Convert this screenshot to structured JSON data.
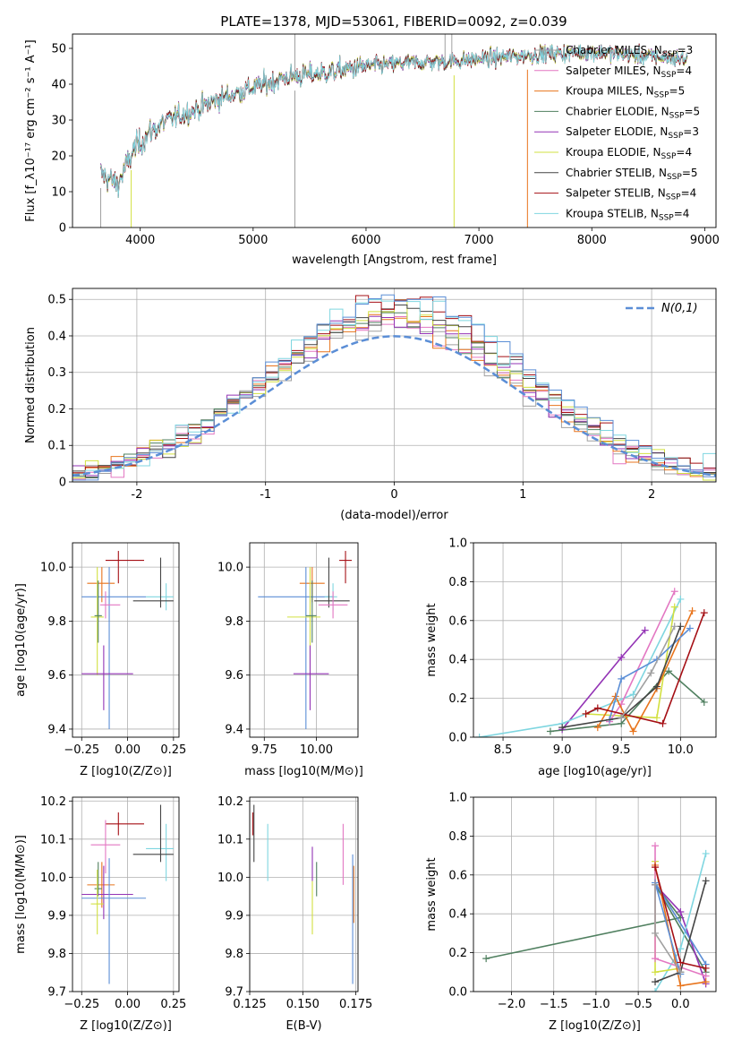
{
  "figure": {
    "title": "PLATE=1378, MJD=53061, FIBERID=0092, z=0.039"
  },
  "colors": {
    "Chabrier MILES": "#a0a0a0",
    "Salpeter MILES": "#e377c2",
    "Kroupa MILES": "#e8741c",
    "Chabrier ELODIE": "#4f7f5f",
    "Salpeter ELODIE": "#9333b5",
    "Kroupa ELODIE": "#d2e040",
    "Chabrier STELIB": "#444444",
    "Salpeter STELIB": "#a50f15",
    "Kroupa STELIB": "#7fd6e0",
    "normal_curve": "#5b8ed6",
    "blue_extra": "#5b8ed6"
  },
  "chart_data": [
    {
      "id": "spectrum",
      "type": "line",
      "title": "PLATE=1378, MJD=53061, FIBERID=0092, z=0.039",
      "xlabel": "wavelength [Angstrom, rest frame]",
      "ylabel": "Flux [f_λ10⁻¹⁷ erg cm⁻² s⁻¹ A⁻¹]",
      "xlim": [
        3400,
        9100
      ],
      "ylim": [
        0,
        54
      ],
      "xticks": [
        4000,
        5000,
        6000,
        7000,
        8000,
        9000
      ],
      "yticks": [
        0,
        10,
        20,
        30,
        40,
        50
      ],
      "grid": false,
      "legend": "right",
      "continuum_x": [
        3650,
        3800,
        3950,
        4100,
        4250,
        4500,
        4700,
        5000,
        5300,
        5600,
        6000,
        6400,
        6800,
        7200,
        7600,
        8000,
        8400,
        8850
      ],
      "continuum_y": [
        15,
        12,
        22,
        27,
        30,
        33,
        36,
        39,
        42,
        43,
        45,
        46,
        46.5,
        47.5,
        48.5,
        49,
        48,
        47
      ],
      "legend_entries": [
        {
          "name": "Chabrier MILES",
          "nssp": "3"
        },
        {
          "name": "Salpeter MILES",
          "nssp": "4"
        },
        {
          "name": "Kroupa MILES",
          "nssp": "5"
        },
        {
          "name": "Chabrier ELODIE",
          "nssp": "5"
        },
        {
          "name": "Salpeter ELODIE",
          "nssp": "3"
        },
        {
          "name": "Kroupa ELODIE",
          "nssp": "4"
        },
        {
          "name": "Chabrier STELIB",
          "nssp": "5"
        },
        {
          "name": "Salpeter STELIB",
          "nssp": "4"
        },
        {
          "name": "Kroupa STELIB",
          "nssp": "4"
        }
      ]
    },
    {
      "id": "residuals",
      "type": "histogram",
      "xlabel": "(data-model)/error",
      "ylabel": "Normed distribution",
      "xlim": [
        -2.5,
        2.5
      ],
      "ylim": [
        0,
        0.53
      ],
      "xticks": [
        -2,
        -1,
        0,
        1,
        2
      ],
      "yticks": [
        0.0,
        0.1,
        0.2,
        0.3,
        0.4,
        0.5
      ],
      "grid": true,
      "legend": "top-right",
      "legend_label": "N(0,1)",
      "bin_width": 0.1
    },
    {
      "id": "age_vs_Z",
      "type": "errorbar",
      "xlabel": "Z [log10(Z/Z⊙)]",
      "ylabel": "age  [log10(age/yr)]",
      "xlim": [
        -0.3,
        0.28
      ],
      "ylim": [
        9.37,
        10.09
      ],
      "xticks": [
        -0.25,
        0.0,
        0.25
      ],
      "xticklabels": [
        "−0.25",
        "0.00",
        "0.25"
      ],
      "yticks": [
        9.4,
        9.6,
        9.8,
        10.0
      ],
      "yticklabels": [
        "9.4",
        "9.6",
        "9.8",
        "10.0"
      ],
      "grid": true,
      "points": [
        {
          "s": "Salpeter STELIB",
          "x": -0.05,
          "y": 10.025,
          "xe": [
            -0.12,
            0.09
          ],
          "ye": [
            9.94,
            10.06
          ]
        },
        {
          "s": "Kroupa MILES",
          "x": -0.14,
          "y": 9.94,
          "xe": [
            -0.22,
            -0.07
          ],
          "ye": [
            9.87,
            10.0
          ]
        },
        {
          "s": "blue_extra",
          "x": -0.1,
          "y": 9.89,
          "xe": [
            -0.25,
            0.1
          ],
          "ye": [
            9.4,
            10.0
          ]
        },
        {
          "s": "Kroupa STELIB",
          "x": 0.21,
          "y": 9.89,
          "xe": [
            0.1,
            0.25
          ],
          "ye": [
            9.84,
            9.94
          ]
        },
        {
          "s": "Chabrier STELIB",
          "x": 0.18,
          "y": 9.875,
          "xe": [
            0.03,
            0.25
          ],
          "ye": [
            9.85,
            10.035
          ]
        },
        {
          "s": "Salpeter MILES",
          "x": -0.12,
          "y": 9.86,
          "xe": [
            -0.15,
            -0.04
          ],
          "ye": [
            9.81,
            9.91
          ]
        },
        {
          "s": "Kroupa ELODIE",
          "x": -0.165,
          "y": 9.815,
          "xe": [
            -0.2,
            -0.13
          ],
          "ye": [
            9.6,
            10.0
          ]
        },
        {
          "s": "Chabrier ELODIE",
          "x": -0.16,
          "y": 9.82,
          "xe": [
            -0.18,
            -0.14
          ],
          "ye": [
            9.72,
            9.95
          ]
        },
        {
          "s": "Salpeter ELODIE",
          "x": -0.13,
          "y": 9.605,
          "xe": [
            -0.25,
            0.03
          ],
          "ye": [
            9.47,
            9.71
          ]
        }
      ]
    },
    {
      "id": "age_vs_mass",
      "type": "errorbar",
      "xlabel": "mass [log10(M/M⊙)]",
      "ylabel": "",
      "xlim": [
        9.68,
        10.2
      ],
      "ylim": [
        9.37,
        10.09
      ],
      "xticks": [
        9.75,
        10.0
      ],
      "xticklabels": [
        "9.75",
        "10.00"
      ],
      "yticks": [
        9.4,
        9.6,
        9.8,
        10.0
      ],
      "yticklabels": [
        "9.4",
        "9.6",
        "9.8",
        "10.0"
      ],
      "grid": true,
      "points": [
        {
          "s": "Salpeter STELIB",
          "x": 10.14,
          "y": 10.025,
          "xe": [
            10.11,
            10.17
          ],
          "ye": [
            9.94,
            10.06
          ]
        },
        {
          "s": "Kroupa MILES",
          "x": 9.98,
          "y": 9.94,
          "xe": [
            9.92,
            10.04
          ],
          "ye": [
            9.87,
            10.0
          ]
        },
        {
          "s": "blue_extra",
          "x": 9.95,
          "y": 9.89,
          "xe": [
            9.72,
            10.08
          ],
          "ye": [
            9.4,
            10.0
          ]
        },
        {
          "s": "Kroupa STELIB",
          "x": 10.08,
          "y": 9.89,
          "xe": [
            10.04,
            10.1
          ],
          "ye": [
            9.84,
            9.94
          ]
        },
        {
          "s": "Chabrier STELIB",
          "x": 10.06,
          "y": 9.875,
          "xe": [
            9.99,
            10.16
          ],
          "ye": [
            9.85,
            10.035
          ]
        },
        {
          "s": "Salpeter MILES",
          "x": 10.08,
          "y": 9.86,
          "xe": [
            10.01,
            10.15
          ],
          "ye": [
            9.81,
            9.91
          ]
        },
        {
          "s": "Kroupa ELODIE",
          "x": 9.97,
          "y": 9.815,
          "xe": [
            9.86,
            10.02
          ],
          "ye": [
            9.6,
            10.0
          ]
        },
        {
          "s": "Chabrier ELODIE",
          "x": 9.98,
          "y": 9.82,
          "xe": [
            9.95,
            10.0
          ],
          "ye": [
            9.72,
            9.95
          ]
        },
        {
          "s": "Salpeter ELODIE",
          "x": 9.97,
          "y": 9.605,
          "xe": [
            9.89,
            10.06
          ],
          "ye": [
            9.47,
            9.71
          ]
        }
      ]
    },
    {
      "id": "weight_vs_age",
      "type": "line",
      "xlabel": "age  [log10(age/yr)]",
      "ylabel": "mass weight",
      "xlim": [
        8.25,
        10.3
      ],
      "ylim": [
        0,
        1
      ],
      "xticks": [
        8.5,
        9.0,
        9.5,
        10.0
      ],
      "xticklabels": [
        "8.5",
        "9.0",
        "9.5",
        "10.0"
      ],
      "yticks": [
        0,
        0.2,
        0.4,
        0.6,
        0.8,
        1.0
      ],
      "yticklabels": [
        "0.0",
        "0.2",
        "0.4",
        "0.6",
        "0.8",
        "1.0"
      ],
      "grid": true,
      "series": [
        {
          "s": "Chabrier ELODIE",
          "x": [
            8.9,
            9.5,
            9.9,
            10.2
          ],
          "y": [
            0.03,
            0.07,
            0.34,
            0.18
          ]
        },
        {
          "s": "Salpeter ELODIE",
          "x": [
            9.0,
            9.5,
            9.7
          ],
          "y": [
            0.04,
            0.41,
            0.55
          ]
        },
        {
          "s": "Kroupa STELIB",
          "x": [
            8.3,
            9.0,
            9.6,
            10.0
          ],
          "y": [
            0.0,
            0.07,
            0.22,
            0.71
          ]
        },
        {
          "s": "Kroupa ELODIE",
          "x": [
            9.2,
            9.8,
            9.95
          ],
          "y": [
            0.12,
            0.1,
            0.67
          ]
        },
        {
          "s": "Salpeter MILES",
          "x": [
            9.4,
            9.5,
            9.95
          ],
          "y": [
            0.08,
            0.17,
            0.75
          ]
        },
        {
          "s": "Kroupa MILES",
          "x": [
            9.3,
            9.45,
            9.6,
            9.8,
            10.1
          ],
          "y": [
            0.05,
            0.21,
            0.03,
            0.25,
            0.65
          ]
        },
        {
          "s": "blue_extra",
          "x": [
            9.4,
            9.5,
            9.8,
            10.08
          ],
          "y": [
            0.09,
            0.3,
            0.4,
            0.56
          ]
        },
        {
          "s": "Chabrier STELIB",
          "x": [
            9.0,
            9.5,
            9.8,
            10.0
          ],
          "y": [
            0.05,
            0.1,
            0.26,
            0.57
          ]
        },
        {
          "s": "Salpeter STELIB",
          "x": [
            9.2,
            9.3,
            9.85,
            10.2
          ],
          "y": [
            0.12,
            0.15,
            0.07,
            0.64
          ]
        },
        {
          "s": "Chabrier MILES",
          "x": [
            9.5,
            9.75,
            9.95
          ],
          "y": [
            0.1,
            0.33,
            0.57
          ]
        }
      ]
    },
    {
      "id": "mass_vs_Z",
      "type": "errorbar",
      "xlabel": "Z [log10(Z/Z⊙)]",
      "ylabel": "mass [log10(M/M⊙)]",
      "xlim": [
        -0.3,
        0.28
      ],
      "ylim": [
        9.7,
        10.21
      ],
      "xticks": [
        -0.25,
        0.0,
        0.25
      ],
      "xticklabels": [
        "−0.25",
        "0.00",
        "0.25"
      ],
      "yticks": [
        9.7,
        9.8,
        9.9,
        10.0,
        10.1,
        10.2
      ],
      "yticklabels": [
        "9.7",
        "9.8",
        "9.9",
        "10.0",
        "10.1",
        "10.2"
      ],
      "grid": true,
      "points": [
        {
          "s": "Salpeter STELIB",
          "x": -0.05,
          "y": 10.14,
          "xe": [
            -0.12,
            0.09
          ],
          "ye": [
            10.11,
            10.17
          ]
        },
        {
          "s": "Kroupa STELIB",
          "x": 0.21,
          "y": 10.075,
          "xe": [
            0.1,
            0.25
          ],
          "ye": [
            9.99,
            10.14
          ]
        },
        {
          "s": "Salpeter MILES",
          "x": -0.12,
          "y": 10.085,
          "xe": [
            -0.2,
            -0.04
          ],
          "ye": [
            10.01,
            10.15
          ]
        },
        {
          "s": "Chabrier STELIB",
          "x": 0.18,
          "y": 10.06,
          "xe": [
            0.03,
            0.25
          ],
          "ye": [
            10.04,
            10.19
          ]
        },
        {
          "s": "Kroupa MILES",
          "x": -0.14,
          "y": 9.98,
          "xe": [
            -0.22,
            -0.07
          ],
          "ye": [
            9.92,
            10.04
          ]
        },
        {
          "s": "Chabrier ELODIE",
          "x": -0.16,
          "y": 9.97,
          "xe": [
            -0.18,
            -0.14
          ],
          "ye": [
            9.95,
            10.04
          ]
        },
        {
          "s": "Salpeter ELODIE",
          "x": -0.13,
          "y": 9.955,
          "xe": [
            -0.25,
            0.03
          ],
          "ye": [
            9.89,
            10.03
          ]
        },
        {
          "s": "blue_extra",
          "x": -0.1,
          "y": 9.945,
          "xe": [
            -0.25,
            0.1
          ],
          "ye": [
            9.72,
            10.05
          ]
        },
        {
          "s": "Kroupa ELODIE",
          "x": -0.165,
          "y": 9.93,
          "xe": [
            -0.2,
            -0.13
          ],
          "ye": [
            9.85,
            10.02
          ]
        }
      ]
    },
    {
      "id": "mass_vs_ebv",
      "type": "errorbar",
      "xlabel": "E(B-V)",
      "ylabel": "",
      "xlim": [
        0.125,
        0.176
      ],
      "ylim": [
        9.7,
        10.21
      ],
      "xticks": [
        0.125,
        0.15,
        0.175
      ],
      "xticklabels": [
        "0.125",
        "0.150",
        "0.175"
      ],
      "yticks": [
        9.7,
        9.8,
        9.9,
        10.0,
        10.1,
        10.2
      ],
      "yticklabels": [
        "9.7",
        "9.8",
        "9.9",
        "10.0",
        "10.1",
        "10.2"
      ],
      "grid": true,
      "points": [
        {
          "s": "Salpeter STELIB",
          "x": 0.1265,
          "y": 10.14,
          "ye": [
            10.11,
            10.17
          ]
        },
        {
          "s": "Chabrier STELIB",
          "x": 0.127,
          "y": 10.06,
          "ye": [
            10.04,
            10.19
          ]
        },
        {
          "s": "Kroupa STELIB",
          "x": 0.1335,
          "y": 10.075,
          "ye": [
            9.99,
            10.14
          ]
        },
        {
          "s": "Salpeter ELODIE",
          "x": 0.1545,
          "y": 10.03,
          "ye": [
            9.99,
            10.08
          ]
        },
        {
          "s": "Kroupa ELODIE",
          "x": 0.1545,
          "y": 9.93,
          "ye": [
            9.85,
            9.99
          ]
        },
        {
          "s": "Chabrier ELODIE",
          "x": 0.1565,
          "y": 10.0,
          "ye": [
            9.95,
            10.04
          ]
        },
        {
          "s": "Salpeter MILES",
          "x": 0.169,
          "y": 10.07,
          "ye": [
            9.98,
            10.14
          ]
        },
        {
          "s": "Kroupa MILES",
          "x": 0.174,
          "y": 9.95,
          "ye": [
            9.88,
            10.03
          ]
        },
        {
          "s": "blue_extra",
          "x": 0.1735,
          "y": 9.9,
          "ye": [
            9.72,
            10.06
          ]
        }
      ]
    },
    {
      "id": "weight_vs_Z",
      "type": "line",
      "xlabel": "Z [log10(Z/Z⊙)]",
      "ylabel": "mass weight",
      "xlim": [
        -2.45,
        0.42
      ],
      "ylim": [
        0,
        1
      ],
      "xticks": [
        -2.0,
        -1.5,
        -1.0,
        -0.5,
        0.0
      ],
      "xticklabels": [
        "−2.0",
        "−1.5",
        "−1.0",
        "−0.5",
        "0.0"
      ],
      "yticks": [
        0,
        0.2,
        0.4,
        0.6,
        0.8,
        1.0
      ],
      "yticklabels": [
        "0.0",
        "0.2",
        "0.4",
        "0.6",
        "0.8",
        "1.0"
      ],
      "grid": true,
      "series": [
        {
          "s": "Chabrier ELODIE",
          "x": [
            -2.3,
            0.0,
            -0.3,
            0.3
          ],
          "y": [
            0.17,
            0.38,
            0.55,
            0.1
          ]
        },
        {
          "s": "Salpeter ELODIE",
          "x": [
            -0.3,
            0.0,
            0.3
          ],
          "y": [
            0.55,
            0.41,
            0.04
          ]
        },
        {
          "s": "Kroupa STELIB",
          "x": [
            -0.3,
            0.0,
            0.3
          ],
          "y": [
            0.0,
            0.22,
            0.71
          ]
        },
        {
          "s": "Kroupa ELODIE",
          "x": [
            -0.3,
            -0.3,
            0.0
          ],
          "y": [
            0.67,
            0.1,
            0.12
          ]
        },
        {
          "s": "Salpeter MILES",
          "x": [
            -0.3,
            -0.3,
            0.3
          ],
          "y": [
            0.75,
            0.17,
            0.08
          ]
        },
        {
          "s": "Kroupa MILES",
          "x": [
            -0.3,
            0.0,
            0.3
          ],
          "y": [
            0.65,
            0.03,
            0.05
          ]
        },
        {
          "s": "blue_extra",
          "x": [
            0.0,
            -0.3,
            0.3
          ],
          "y": [
            0.09,
            0.56,
            0.14
          ]
        },
        {
          "s": "Chabrier STELIB",
          "x": [
            -0.3,
            0.0,
            0.3
          ],
          "y": [
            0.05,
            0.1,
            0.57
          ]
        },
        {
          "s": "Salpeter STELIB",
          "x": [
            -0.3,
            0.0,
            0.3
          ],
          "y": [
            0.64,
            0.15,
            0.12
          ]
        },
        {
          "s": "Chabrier MILES",
          "x": [
            -0.3,
            -0.3,
            0.0
          ],
          "y": [
            0.55,
            0.3,
            0.1
          ]
        }
      ]
    }
  ]
}
